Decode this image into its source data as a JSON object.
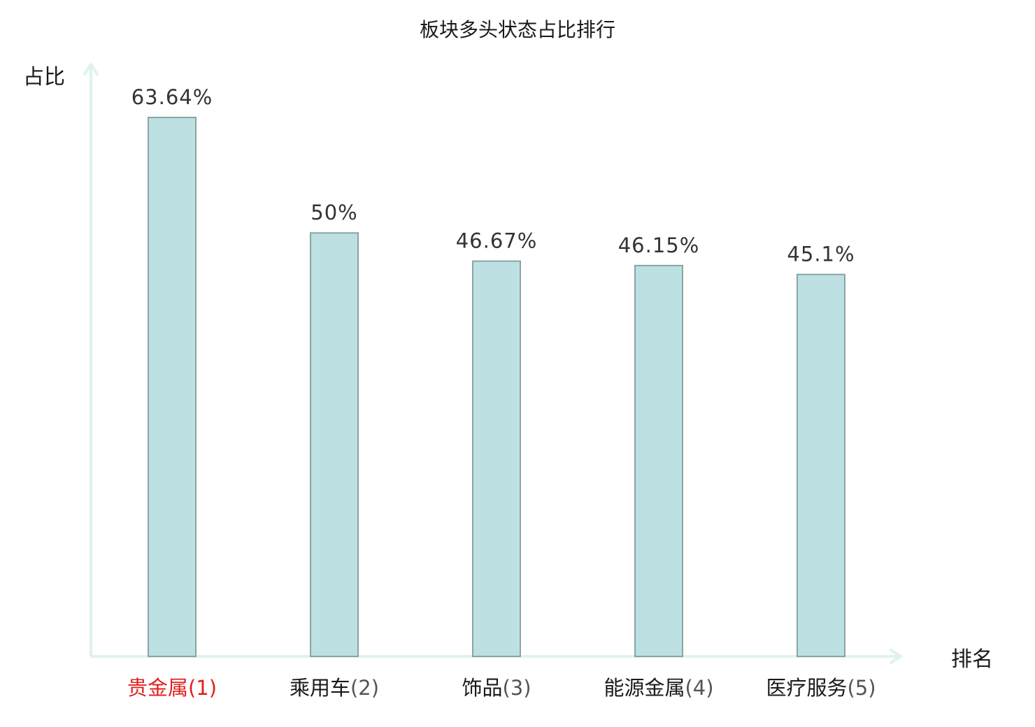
{
  "chart_data": {
    "type": "bar",
    "title": "板块多头状态占比排行",
    "xlabel": "排名",
    "ylabel": "占比",
    "categories": [
      "贵金属",
      "乘用车",
      "饰品",
      "能源金属",
      "医疗服务"
    ],
    "ranks": [
      "(1)",
      "(2)",
      "(3)",
      "(4)",
      "(5)"
    ],
    "values": [
      63.64,
      50,
      46.67,
      46.15,
      45.1
    ],
    "value_labels": [
      "63.64%",
      "50%",
      "46.67%",
      "46.15%",
      "45.1%"
    ],
    "ylim": [
      0,
      70
    ],
    "grid": false,
    "legend": "none"
  },
  "colors": {
    "bar_fill": "#bde1e2",
    "bar_stroke": "#8aa4a5",
    "axis": "#dff2ef",
    "highlight_label": "#e02020",
    "normal_label": "#1a1a1a",
    "rank_normal": "#555555"
  }
}
